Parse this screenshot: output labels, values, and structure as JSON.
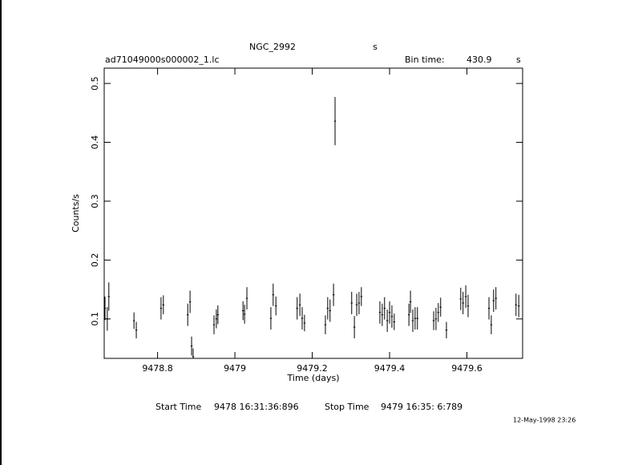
{
  "chart_data": {
    "type": "errorbar",
    "title": "NGC_2992",
    "title_unit": "s",
    "file_name": "ad71049000s000002_1.lc",
    "bin_time_label": "Bin time:",
    "bin_time": 430.9,
    "bin_time_unit": "s",
    "x_label": "Time (days)",
    "y_label": "Counts/s",
    "start_time_label": "Start Time",
    "start_time": "9478 16:31:36:896",
    "stop_time_label": "Stop Time",
    "stop_time": "9479 16:35: 6:789",
    "date_stamp": "12-May-1998 23:26",
    "color": "#000000",
    "x": [
      9478.664,
      9478.67,
      9478.674,
      9478.739,
      9478.745,
      9478.809,
      9478.815,
      9478.878,
      9478.884,
      9478.888,
      9478.892,
      9478.946,
      9478.952,
      9478.956,
      9479.021,
      9479.025,
      9479.031,
      9479.093,
      9479.099,
      9479.106,
      9479.161,
      9479.168,
      9479.174,
      9479.18,
      9479.234,
      9479.24,
      9479.246,
      9479.255,
      9479.259,
      9479.302,
      9479.309,
      9479.315,
      9479.321,
      9479.327,
      9479.375,
      9479.381,
      9479.387,
      9479.394,
      9479.4,
      9479.406,
      9479.412,
      9479.45,
      9479.454,
      9479.46,
      9479.466,
      9479.472,
      9479.514,
      9479.52,
      9479.526,
      9479.532,
      9479.547,
      9479.584,
      9479.59,
      9479.597,
      9479.603,
      9479.657,
      9479.663,
      9479.669,
      9479.675,
      9479.727,
      9479.734
    ],
    "values": [
      0.118,
      0.1,
      0.138,
      0.097,
      0.081,
      0.118,
      0.124,
      0.107,
      0.129,
      0.054,
      0.036,
      0.09,
      0.1,
      0.107,
      0.114,
      0.108,
      0.135,
      0.101,
      0.141,
      0.122,
      0.118,
      0.124,
      0.101,
      0.093,
      0.09,
      0.118,
      0.114,
      0.141,
      0.436,
      0.127,
      0.086,
      0.124,
      0.127,
      0.138,
      0.111,
      0.107,
      0.118,
      0.097,
      0.111,
      0.104,
      0.095,
      0.107,
      0.129,
      0.097,
      0.101,
      0.101,
      0.097,
      0.1,
      0.111,
      0.12,
      0.081,
      0.134,
      0.127,
      0.138,
      0.122,
      0.118,
      0.09,
      0.131,
      0.135,
      0.124,
      0.122
    ],
    "errors": [
      0.02,
      0.02,
      0.024,
      0.014,
      0.014,
      0.019,
      0.016,
      0.019,
      0.019,
      0.016,
      0.014,
      0.016,
      0.016,
      0.016,
      0.016,
      0.016,
      0.019,
      0.019,
      0.019,
      0.016,
      0.019,
      0.019,
      0.019,
      0.014,
      0.016,
      0.019,
      0.019,
      0.019,
      0.041,
      0.019,
      0.019,
      0.019,
      0.019,
      0.016,
      0.019,
      0.019,
      0.019,
      0.019,
      0.019,
      0.019,
      0.014,
      0.019,
      0.019,
      0.019,
      0.019,
      0.019,
      0.016,
      0.019,
      0.016,
      0.016,
      0.014,
      0.019,
      0.019,
      0.019,
      0.019,
      0.019,
      0.016,
      0.019,
      0.019,
      0.019,
      0.019
    ],
    "xlim": [
      9478.662,
      9479.744
    ],
    "ylim": [
      0.033,
      0.526
    ],
    "xticks": [
      9478.8,
      9479,
      9479.2,
      9479.4,
      9479.6
    ],
    "yticks": [
      0.1,
      0.2,
      0.3,
      0.4,
      0.5
    ]
  }
}
